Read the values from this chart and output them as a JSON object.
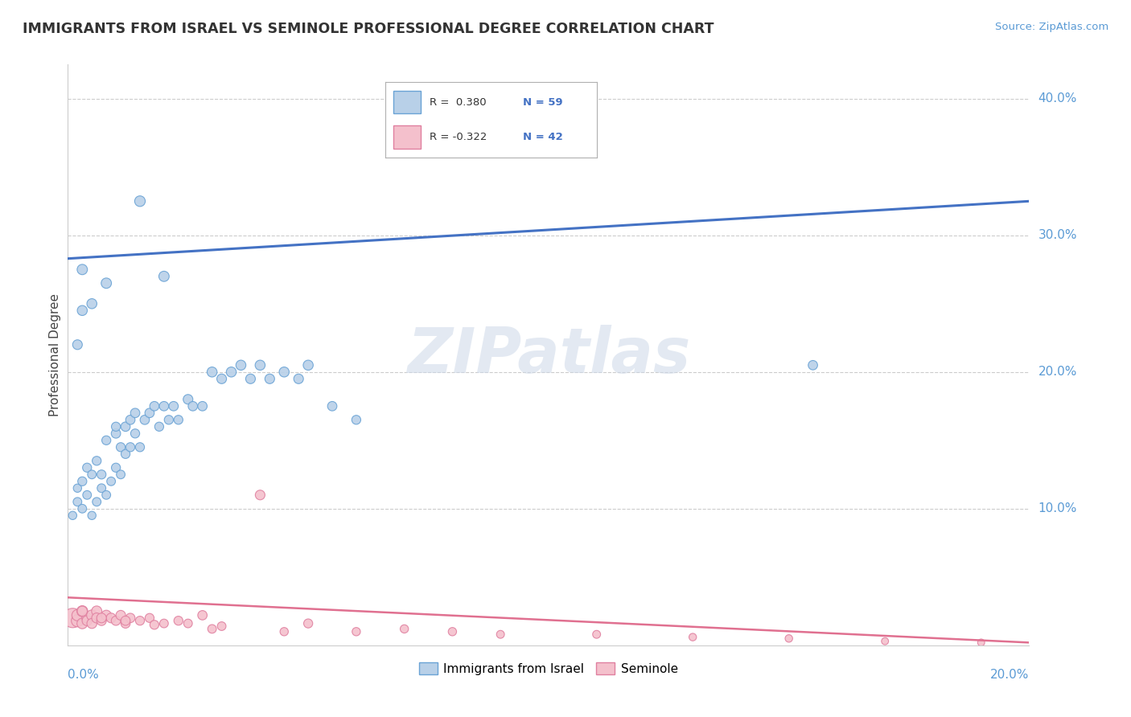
{
  "title": "IMMIGRANTS FROM ISRAEL VS SEMINOLE PROFESSIONAL DEGREE CORRELATION CHART",
  "source": "Source: ZipAtlas.com",
  "ylabel": "Professional Degree",
  "legend_blue_label": "Immigrants from Israel",
  "legend_pink_label": "Seminole",
  "legend_r_blue": "R =  0.380",
  "legend_n_blue": "N = 59",
  "legend_r_pink": "R = -0.322",
  "legend_n_pink": "N = 42",
  "ytick_values": [
    0.0,
    0.1,
    0.2,
    0.3,
    0.4
  ],
  "ytick_labels": [
    "",
    "10.0%",
    "20.0%",
    "30.0%",
    "40.0%"
  ],
  "xlim": [
    0.0,
    0.2
  ],
  "ylim": [
    0.0,
    0.425
  ],
  "watermark": "ZIPatlas",
  "background_color": "#ffffff",
  "grid_color": "#cccccc",
  "blue_fill": "#b8d0e8",
  "blue_edge": "#6aa3d5",
  "pink_fill": "#f4c0cc",
  "pink_edge": "#e080a0",
  "blue_line_color": "#4472C4",
  "pink_line_color": "#e07090",
  "blue_line_x0": 0.0,
  "blue_line_y0": 0.283,
  "blue_line_x1": 0.2,
  "blue_line_y1": 0.325,
  "pink_line_x0": 0.0,
  "pink_line_y0": 0.035,
  "pink_line_x1": 0.2,
  "pink_line_y1": 0.002,
  "blue_scatter_x": [
    0.001,
    0.002,
    0.002,
    0.003,
    0.003,
    0.004,
    0.004,
    0.005,
    0.005,
    0.006,
    0.006,
    0.007,
    0.007,
    0.008,
    0.008,
    0.009,
    0.01,
    0.01,
    0.011,
    0.011,
    0.012,
    0.012,
    0.013,
    0.013,
    0.014,
    0.014,
    0.015,
    0.016,
    0.017,
    0.018,
    0.019,
    0.02,
    0.021,
    0.022,
    0.023,
    0.025,
    0.026,
    0.028,
    0.03,
    0.032,
    0.034,
    0.036,
    0.038,
    0.04,
    0.042,
    0.045,
    0.048,
    0.05,
    0.055,
    0.06,
    0.002,
    0.003,
    0.003,
    0.005,
    0.008,
    0.01,
    0.015,
    0.02,
    0.155
  ],
  "blue_scatter_y": [
    0.095,
    0.105,
    0.115,
    0.1,
    0.12,
    0.11,
    0.13,
    0.095,
    0.125,
    0.105,
    0.135,
    0.115,
    0.125,
    0.11,
    0.15,
    0.12,
    0.13,
    0.155,
    0.125,
    0.145,
    0.14,
    0.16,
    0.145,
    0.165,
    0.155,
    0.17,
    0.145,
    0.165,
    0.17,
    0.175,
    0.16,
    0.175,
    0.165,
    0.175,
    0.165,
    0.18,
    0.175,
    0.175,
    0.2,
    0.195,
    0.2,
    0.205,
    0.195,
    0.205,
    0.195,
    0.2,
    0.195,
    0.205,
    0.175,
    0.165,
    0.22,
    0.245,
    0.275,
    0.25,
    0.265,
    0.16,
    0.325,
    0.27,
    0.205
  ],
  "blue_scatter_sizes": [
    55,
    60,
    55,
    60,
    65,
    60,
    65,
    55,
    60,
    60,
    65,
    60,
    65,
    60,
    65,
    60,
    65,
    70,
    60,
    65,
    65,
    70,
    65,
    70,
    65,
    70,
    65,
    70,
    70,
    70,
    65,
    70,
    65,
    70,
    65,
    75,
    70,
    70,
    80,
    75,
    80,
    80,
    75,
    80,
    75,
    80,
    75,
    80,
    70,
    65,
    75,
    80,
    85,
    80,
    85,
    65,
    90,
    85,
    70
  ],
  "pink_scatter_x": [
    0.001,
    0.002,
    0.002,
    0.003,
    0.003,
    0.004,
    0.004,
    0.005,
    0.005,
    0.006,
    0.006,
    0.007,
    0.008,
    0.009,
    0.01,
    0.011,
    0.012,
    0.013,
    0.015,
    0.017,
    0.02,
    0.023,
    0.025,
    0.028,
    0.032,
    0.04,
    0.05,
    0.06,
    0.07,
    0.08,
    0.09,
    0.11,
    0.13,
    0.15,
    0.17,
    0.19,
    0.003,
    0.007,
    0.012,
    0.018,
    0.03,
    0.045
  ],
  "pink_scatter_y": [
    0.02,
    0.018,
    0.022,
    0.016,
    0.025,
    0.02,
    0.018,
    0.022,
    0.016,
    0.025,
    0.02,
    0.018,
    0.022,
    0.02,
    0.018,
    0.022,
    0.016,
    0.02,
    0.018,
    0.02,
    0.016,
    0.018,
    0.016,
    0.022,
    0.014,
    0.11,
    0.016,
    0.01,
    0.012,
    0.01,
    0.008,
    0.008,
    0.006,
    0.005,
    0.003,
    0.002,
    0.025,
    0.02,
    0.018,
    0.015,
    0.012,
    0.01
  ],
  "pink_scatter_sizes": [
    300,
    120,
    100,
    90,
    95,
    85,
    80,
    90,
    80,
    85,
    80,
    75,
    80,
    75,
    70,
    75,
    70,
    70,
    65,
    65,
    60,
    65,
    60,
    70,
    60,
    75,
    65,
    55,
    55,
    55,
    50,
    50,
    45,
    45,
    40,
    40,
    80,
    75,
    70,
    65,
    60,
    55
  ]
}
